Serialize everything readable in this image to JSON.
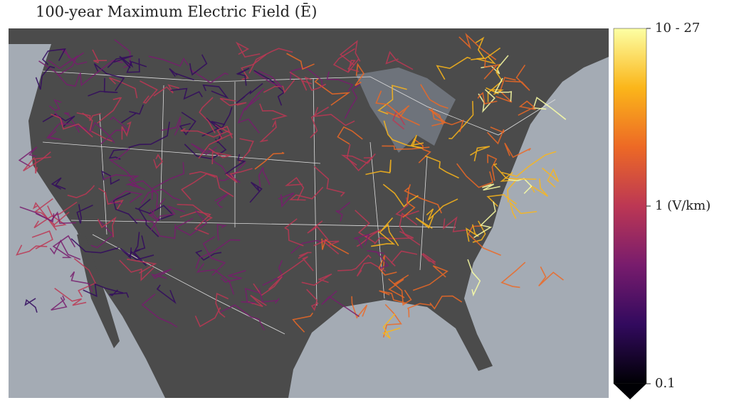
{
  "title": "100-year Maximum Electric Field (Ē)",
  "colorbar": {
    "scale": "log",
    "lim": [
      0.1,
      10
    ],
    "ticks": [
      0.1,
      {
        "value": 1,
        "label": "1 (V/km)"
      },
      {
        "value": 10,
        "label": "10 - 27"
      }
    ],
    "colors": [
      "#000004",
      "#320a5e",
      "#781c6d",
      "#bc3754",
      "#ed6925",
      "#fbb61a",
      "#fcffa4"
    ]
  }
}
